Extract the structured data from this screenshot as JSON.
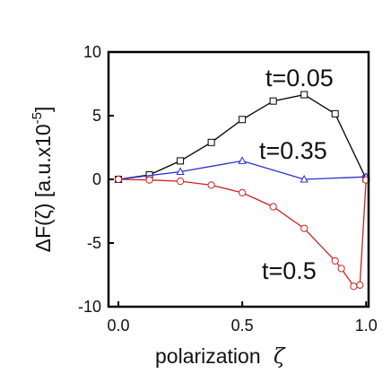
{
  "chart_data": {
    "type": "line",
    "xlabel": "polarization ",
    "xlabel_symbol": "ζ",
    "ylabel": "ΔF(ζ) [a.u.x10",
    "ylabel_exp": "-5",
    "ylabel_close": "]",
    "xlim": [
      -0.04,
      1.01
    ],
    "ylim": [
      -10,
      10
    ],
    "x_ticks": [
      "0.0",
      "0.5",
      "1.0"
    ],
    "x_tick_values": [
      0.0,
      0.5,
      1.0
    ],
    "y_ticks": [
      "10",
      "5",
      "0",
      "-5",
      "-10"
    ],
    "y_tick_values": [
      10,
      5,
      0,
      -5,
      -10
    ],
    "grid": false,
    "legend": "inline annotations",
    "series": [
      {
        "name": "t=0.05",
        "color": "#000000",
        "marker": "square",
        "x": [
          0.0,
          0.125,
          0.25,
          0.375,
          0.5,
          0.625,
          0.75,
          0.875,
          1.0
        ],
        "y": [
          0.0,
          0.35,
          1.45,
          2.9,
          4.7,
          6.15,
          6.65,
          5.15,
          0.05
        ]
      },
      {
        "name": "t=0.35",
        "color": "#2b2bd0",
        "marker": "triangle",
        "x": [
          0.0,
          0.25,
          0.5,
          0.75,
          1.0
        ],
        "y": [
          0.0,
          0.6,
          1.45,
          0.0,
          0.2
        ]
      },
      {
        "name": "t=0.5",
        "color": "#d02020",
        "marker": "circle",
        "x": [
          0.0,
          0.125,
          0.25,
          0.375,
          0.5,
          0.625,
          0.75,
          0.875,
          0.9,
          0.95,
          0.975,
          1.0
        ],
        "y": [
          0.0,
          -0.05,
          -0.15,
          -0.45,
          -1.05,
          -2.15,
          -3.85,
          -6.4,
          -7.0,
          -8.4,
          -8.3,
          -0.05
        ]
      }
    ],
    "annotations": [
      "t=0.05",
      "t=0.35",
      "t=0.5"
    ]
  }
}
